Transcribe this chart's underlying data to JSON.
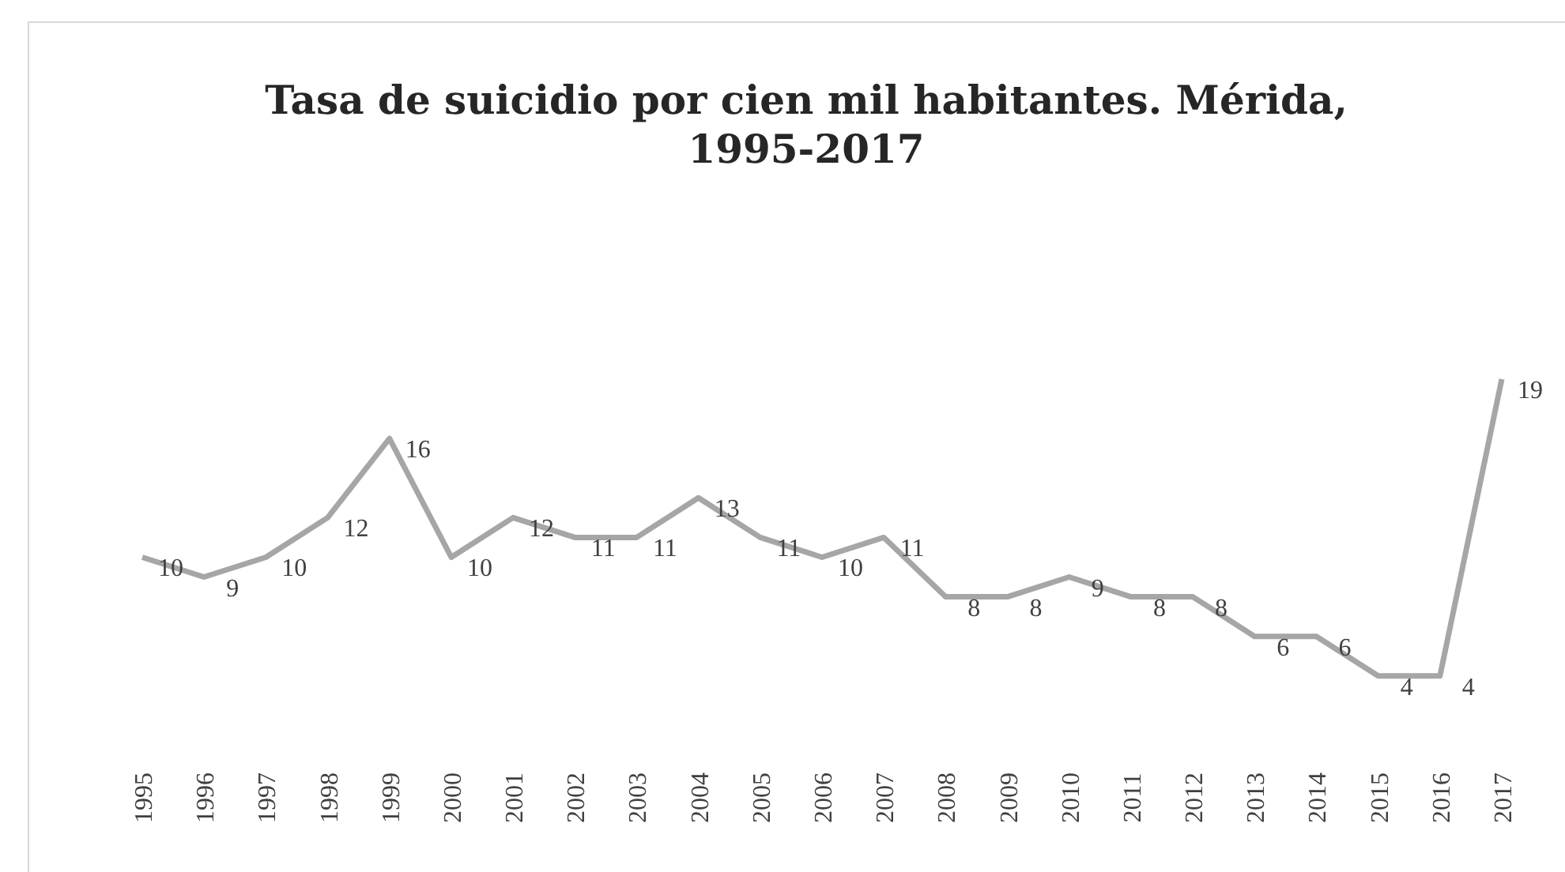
{
  "chart_data": {
    "type": "line",
    "title": "Tasa de suicidio por cien mil habitantes. Mérida, 1995-2017",
    "categories": [
      "1995",
      "1996",
      "1997",
      "1998",
      "1999",
      "2000",
      "2001",
      "2002",
      "2003",
      "2004",
      "2005",
      "2006",
      "2007",
      "2008",
      "2009",
      "2010",
      "2011",
      "2012",
      "2013",
      "2014",
      "2015",
      "2016",
      "2017"
    ],
    "series": [
      {
        "color": "#a6a6a6",
        "values": [
          10,
          9,
          10,
          12,
          16,
          10,
          12,
          11,
          11,
          13,
          11,
          10,
          11,
          8,
          8,
          9,
          8,
          8,
          6,
          6,
          4,
          4,
          19
        ]
      }
    ],
    "data_labels": true,
    "marker": "none"
  }
}
